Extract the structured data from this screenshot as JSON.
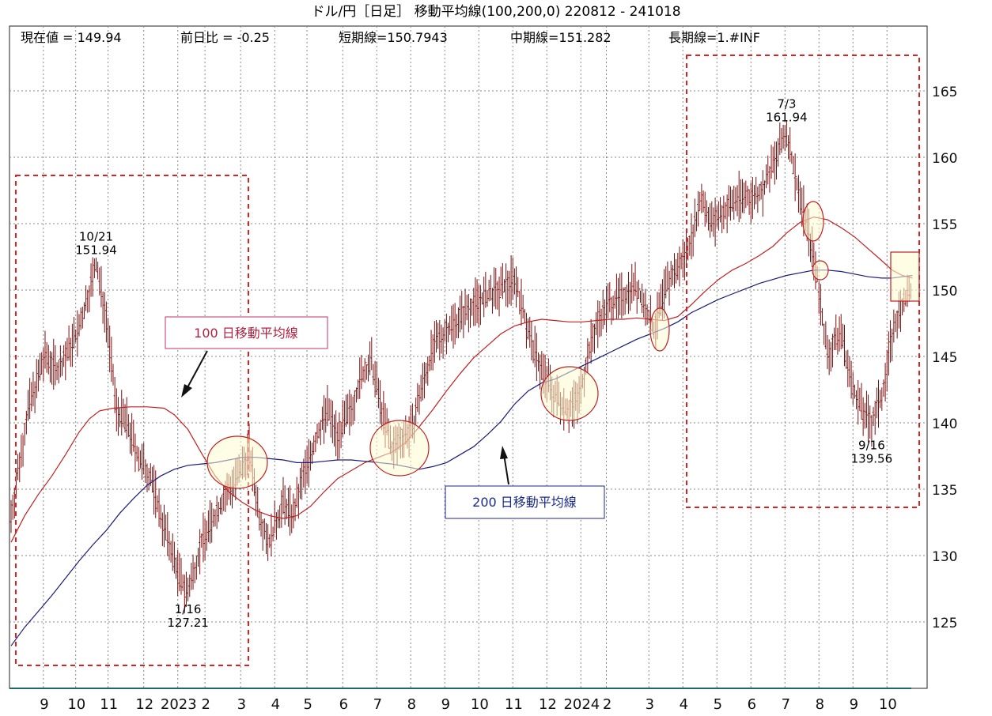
{
  "title": "ドル/円［日足］ 移動平均線(100,200,0)  220812 - 241018",
  "stats": {
    "current": "現在値 = 149.94",
    "change": "前日比 = -0.25",
    "short": "短期線=150.7943",
    "mid": "中期線=151.282",
    "long": "長期線=1.#INF"
  },
  "labels": {
    "ma100": "100 日移動平均線",
    "ma200": "200 日移動平均線"
  },
  "chart_data": {
    "type": "line",
    "ylim": [
      120,
      169
    ],
    "yticks": [
      125,
      130,
      135,
      140,
      145,
      150,
      155,
      160,
      165
    ],
    "grid": true,
    "month_labels": [
      "9",
      "10",
      "11",
      "12",
      "2023",
      "2",
      "3",
      "4",
      "5",
      "6",
      "7",
      "8",
      "9",
      "10",
      "11",
      "12",
      "2024",
      "2",
      "3",
      "4",
      "5",
      "6",
      "7",
      "8",
      "9",
      "10"
    ],
    "month_index": [
      0.65,
      1.6,
      2.55,
      3.6,
      4.6,
      5.4,
      6.45,
      7.45,
      8.4,
      9.45,
      10.45,
      11.45,
      12.45,
      13.45,
      14.45,
      15.45,
      16.45,
      17.2,
      18.45,
      19.45,
      20.45,
      21.45,
      22.45,
      23.45,
      24.45,
      25.45
    ],
    "price_path": [
      [
        0,
        133
      ],
      [
        0.5,
        141
      ],
      [
        1,
        145
      ],
      [
        1.4,
        144
      ],
      [
        2,
        147
      ],
      [
        2.5,
        151.9
      ],
      [
        2.8,
        148
      ],
      [
        3.1,
        141
      ],
      [
        3.4,
        140
      ],
      [
        3.8,
        137
      ],
      [
        4.1,
        136
      ],
      [
        4.4,
        133
      ],
      [
        4.7,
        130.5
      ],
      [
        5.0,
        128
      ],
      [
        5.2,
        127.2
      ],
      [
        5.6,
        131
      ],
      [
        6.0,
        133
      ],
      [
        6.4,
        135
      ],
      [
        6.7,
        136
      ],
      [
        7.0,
        138
      ],
      [
        7.3,
        133
      ],
      [
        7.6,
        131
      ],
      [
        8.0,
        134
      ],
      [
        8.3,
        133
      ],
      [
        8.6,
        136
      ],
      [
        9.0,
        139
      ],
      [
        9.3,
        141
      ],
      [
        9.6,
        139
      ],
      [
        10.0,
        141
      ],
      [
        10.3,
        143.5
      ],
      [
        10.6,
        144.5
      ],
      [
        10.9,
        141
      ],
      [
        11.2,
        138
      ],
      [
        11.5,
        139
      ],
      [
        11.8,
        139.5
      ],
      [
        12.0,
        142
      ],
      [
        12.4,
        145.5
      ],
      [
        12.8,
        147
      ],
      [
        13.2,
        148
      ],
      [
        13.6,
        149
      ],
      [
        14.0,
        149.5
      ],
      [
        14.4,
        150
      ],
      [
        14.8,
        151
      ],
      [
        15.0,
        149
      ],
      [
        15.3,
        146
      ],
      [
        15.6,
        144
      ],
      [
        16.0,
        142
      ],
      [
        16.4,
        141
      ],
      [
        16.7,
        142
      ],
      [
        17.0,
        145.5
      ],
      [
        17.3,
        148
      ],
      [
        17.6,
        149
      ],
      [
        18.0,
        149.5
      ],
      [
        18.3,
        150.5
      ],
      [
        18.6,
        149
      ],
      [
        18.9,
        147
      ],
      [
        19.3,
        150.5
      ],
      [
        19.7,
        152
      ],
      [
        20.0,
        154
      ],
      [
        20.3,
        157
      ],
      [
        20.6,
        155
      ],
      [
        21.0,
        156
      ],
      [
        21.4,
        157
      ],
      [
        21.8,
        157
      ],
      [
        22.1,
        157.5
      ],
      [
        22.5,
        160
      ],
      [
        22.8,
        161.9
      ],
      [
        23.1,
        158
      ],
      [
        23.4,
        155
      ],
      [
        23.7,
        151
      ],
      [
        24.0,
        145
      ],
      [
        24.4,
        147
      ],
      [
        24.7,
        143
      ],
      [
        25.0,
        141
      ],
      [
        25.3,
        140
      ],
      [
        25.6,
        142
      ],
      [
        25.9,
        146.5
      ],
      [
        26.2,
        149
      ],
      [
        26.5,
        150
      ]
    ],
    "series": [
      {
        "name": "100 日移動平均線",
        "color": "#c02020",
        "points": [
          [
            0,
            131
          ],
          [
            0.4,
            133
          ],
          [
            0.8,
            134.6
          ],
          [
            1.2,
            136
          ],
          [
            1.6,
            137.6
          ],
          [
            2.0,
            139.3
          ],
          [
            2.3,
            140.3
          ],
          [
            2.6,
            140.9
          ],
          [
            3.0,
            141.1
          ],
          [
            3.5,
            141.2
          ],
          [
            4.0,
            141.2
          ],
          [
            4.5,
            141.1
          ],
          [
            4.8,
            140.6
          ],
          [
            5.2,
            139.5
          ],
          [
            5.6,
            137.7
          ],
          [
            6.0,
            136
          ],
          [
            6.4,
            134.8
          ],
          [
            6.8,
            134.0
          ],
          [
            7.2,
            133.4
          ],
          [
            7.6,
            133.0
          ],
          [
            8.0,
            132.8
          ],
          [
            8.4,
            133.0
          ],
          [
            8.8,
            133.7
          ],
          [
            9.2,
            134.8
          ],
          [
            9.6,
            135.8
          ],
          [
            10.0,
            136.4
          ],
          [
            10.4,
            137.0
          ],
          [
            10.8,
            137.4
          ],
          [
            11.2,
            137.8
          ],
          [
            11.6,
            138.5
          ],
          [
            12.0,
            139.7
          ],
          [
            12.4,
            141.0
          ],
          [
            12.8,
            142.4
          ],
          [
            13.2,
            143.7
          ],
          [
            13.6,
            144.9
          ],
          [
            14.0,
            145.8
          ],
          [
            14.4,
            146.7
          ],
          [
            14.8,
            147.3
          ],
          [
            15.2,
            147.6
          ],
          [
            15.6,
            147.8
          ],
          [
            16.0,
            147.7
          ],
          [
            16.4,
            147.6
          ],
          [
            16.8,
            147.6
          ],
          [
            17.2,
            147.7
          ],
          [
            17.6,
            147.8
          ],
          [
            18.0,
            147.8
          ],
          [
            18.4,
            147.9
          ],
          [
            18.8,
            147.8
          ],
          [
            19.2,
            147.7
          ],
          [
            19.6,
            148.0
          ],
          [
            20.0,
            148.9
          ],
          [
            20.4,
            149.9
          ],
          [
            20.8,
            150.8
          ],
          [
            21.2,
            151.5
          ],
          [
            21.6,
            152.0
          ],
          [
            22.0,
            152.6
          ],
          [
            22.4,
            153.3
          ],
          [
            22.8,
            154.3
          ],
          [
            23.2,
            155.1
          ],
          [
            23.6,
            155.5
          ],
          [
            24.0,
            155.3
          ],
          [
            24.4,
            154.7
          ],
          [
            24.8,
            154.0
          ],
          [
            25.2,
            153.1
          ],
          [
            25.6,
            152.2
          ],
          [
            25.9,
            151.5
          ],
          [
            26.2,
            151.1
          ],
          [
            26.5,
            150.9
          ]
        ]
      },
      {
        "name": "200 日移動平均線",
        "color": "#1a1a7a",
        "points": [
          [
            0,
            123.2
          ],
          [
            0.4,
            124.6
          ],
          [
            0.8,
            125.8
          ],
          [
            1.2,
            127.0
          ],
          [
            1.6,
            128.3
          ],
          [
            2.0,
            129.6
          ],
          [
            2.4,
            130.8
          ],
          [
            2.8,
            131.9
          ],
          [
            3.2,
            133.2
          ],
          [
            3.6,
            134.3
          ],
          [
            4.0,
            135.3
          ],
          [
            4.4,
            136.0
          ],
          [
            4.8,
            136.5
          ],
          [
            5.2,
            136.8
          ],
          [
            5.6,
            136.9
          ],
          [
            6.0,
            137.0
          ],
          [
            6.4,
            137.2
          ],
          [
            6.8,
            137.4
          ],
          [
            7.2,
            137.4
          ],
          [
            7.6,
            137.3
          ],
          [
            8.0,
            137.2
          ],
          [
            8.4,
            137.0
          ],
          [
            8.8,
            137.0
          ],
          [
            9.2,
            137.1
          ],
          [
            9.6,
            137.2
          ],
          [
            10.0,
            137.2
          ],
          [
            10.4,
            137.1
          ],
          [
            10.8,
            137.0
          ],
          [
            11.2,
            136.9
          ],
          [
            11.6,
            136.7
          ],
          [
            12.0,
            136.5
          ],
          [
            12.4,
            136.7
          ],
          [
            12.8,
            137.0
          ],
          [
            13.2,
            137.6
          ],
          [
            13.6,
            138.2
          ],
          [
            14.0,
            139.1
          ],
          [
            14.4,
            140.1
          ],
          [
            14.8,
            141.4
          ],
          [
            15.2,
            142.4
          ],
          [
            15.6,
            143.0
          ],
          [
            16.0,
            143.3
          ],
          [
            16.4,
            143.8
          ],
          [
            16.8,
            144.3
          ],
          [
            17.2,
            144.8
          ],
          [
            17.6,
            145.3
          ],
          [
            18.0,
            145.8
          ],
          [
            18.4,
            146.3
          ],
          [
            18.8,
            146.7
          ],
          [
            19.2,
            147.1
          ],
          [
            19.6,
            147.6
          ],
          [
            20.0,
            148.3
          ],
          [
            20.4,
            148.8
          ],
          [
            20.8,
            149.3
          ],
          [
            21.2,
            149.7
          ],
          [
            21.6,
            150.1
          ],
          [
            22.0,
            150.5
          ],
          [
            22.4,
            150.8
          ],
          [
            22.8,
            151.1
          ],
          [
            23.2,
            151.3
          ],
          [
            23.6,
            151.5
          ],
          [
            24.0,
            151.5
          ],
          [
            24.4,
            151.4
          ],
          [
            24.8,
            151.2
          ],
          [
            25.2,
            151.0
          ],
          [
            25.6,
            150.9
          ],
          [
            25.9,
            150.9
          ],
          [
            26.2,
            151.0
          ],
          [
            26.5,
            151.1
          ]
        ]
      }
    ],
    "annotations": [
      {
        "id": "a1021",
        "date": "10/21",
        "value": "151.94",
        "x": 2.5,
        "y": 151.94,
        "pos": "above"
      },
      {
        "id": "a0116",
        "date": "1/16",
        "value": "127.21",
        "x": 5.2,
        "y": 127.21,
        "pos": "below"
      },
      {
        "id": "a0703",
        "date": "7/3",
        "value": "161.94",
        "x": 22.8,
        "y": 161.94,
        "pos": "above"
      },
      {
        "id": "a0916",
        "date": "9/16",
        "value": "139.56",
        "x": 25.3,
        "y": 139.56,
        "pos": "below"
      }
    ]
  }
}
